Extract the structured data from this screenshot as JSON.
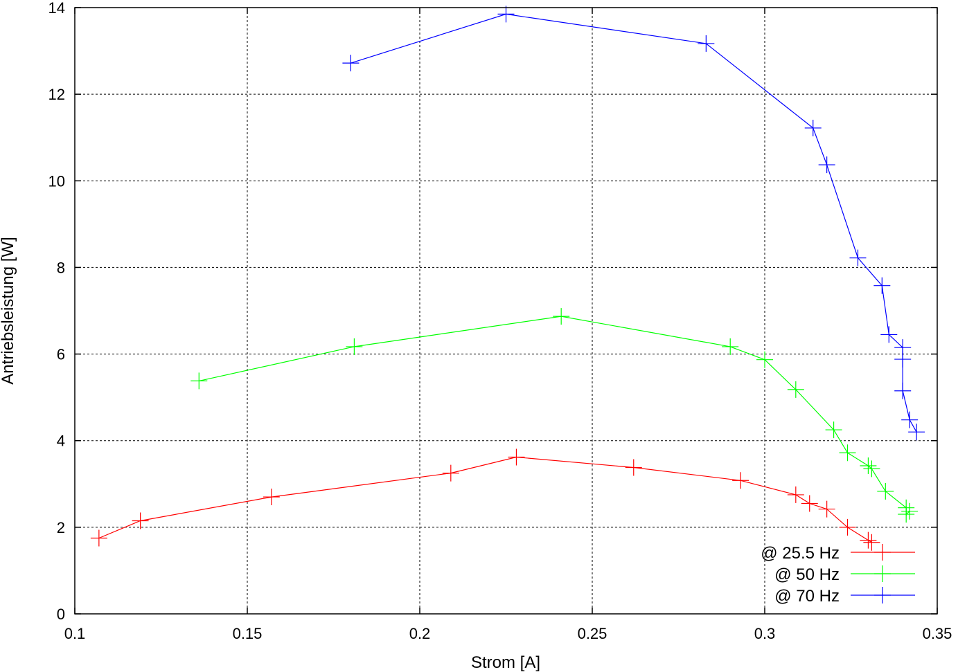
{
  "chart_data": {
    "type": "line",
    "title": "",
    "xlabel": "Strom [A]",
    "ylabel": "Antriebsleistung [W]",
    "xlim": [
      0.1,
      0.35
    ],
    "ylim": [
      0,
      14
    ],
    "x_ticks": [
      0.1,
      0.15,
      0.2,
      0.25,
      0.3,
      0.35
    ],
    "x_tick_labels": [
      "0.1",
      "0.15",
      "0.2",
      "0.25",
      "0.3",
      "0.35"
    ],
    "y_ticks": [
      0,
      2,
      4,
      6,
      8,
      10,
      12,
      14
    ],
    "y_tick_labels": [
      "0",
      "2",
      "4",
      "6",
      "8",
      "10",
      "12",
      "14"
    ],
    "grid": true,
    "legend_position": "bottom-right",
    "series": [
      {
        "name": "@ 25.5 Hz",
        "color": "#ff0000",
        "marker": "plus",
        "x": [
          0.107,
          0.119,
          0.157,
          0.209,
          0.228,
          0.262,
          0.293,
          0.309,
          0.313,
          0.318,
          0.324,
          0.33,
          0.331
        ],
        "y": [
          1.75,
          2.15,
          2.7,
          3.25,
          3.62,
          3.38,
          3.08,
          2.75,
          2.55,
          2.42,
          2.0,
          1.7,
          1.65
        ]
      },
      {
        "name": "@ 50 Hz",
        "color": "#00ff00",
        "marker": "plus",
        "x": [
          0.136,
          0.181,
          0.241,
          0.29,
          0.3,
          0.309,
          0.32,
          0.324,
          0.33,
          0.331,
          0.335,
          0.341,
          0.341,
          0.342
        ],
        "y": [
          5.38,
          6.17,
          6.87,
          6.17,
          5.87,
          5.18,
          4.25,
          3.72,
          3.42,
          3.35,
          2.83,
          2.45,
          2.3,
          2.37
        ]
      },
      {
        "name": "@ 70 Hz",
        "color": "#0000ff",
        "marker": "plus",
        "x": [
          0.18,
          0.225,
          0.283,
          0.314,
          0.318,
          0.327,
          0.334,
          0.336,
          0.34,
          0.34,
          0.34,
          0.342,
          0.344
        ],
        "y": [
          12.72,
          13.85,
          13.17,
          11.22,
          10.37,
          8.22,
          7.58,
          6.45,
          6.15,
          5.88,
          5.15,
          4.48,
          4.2
        ]
      }
    ]
  }
}
